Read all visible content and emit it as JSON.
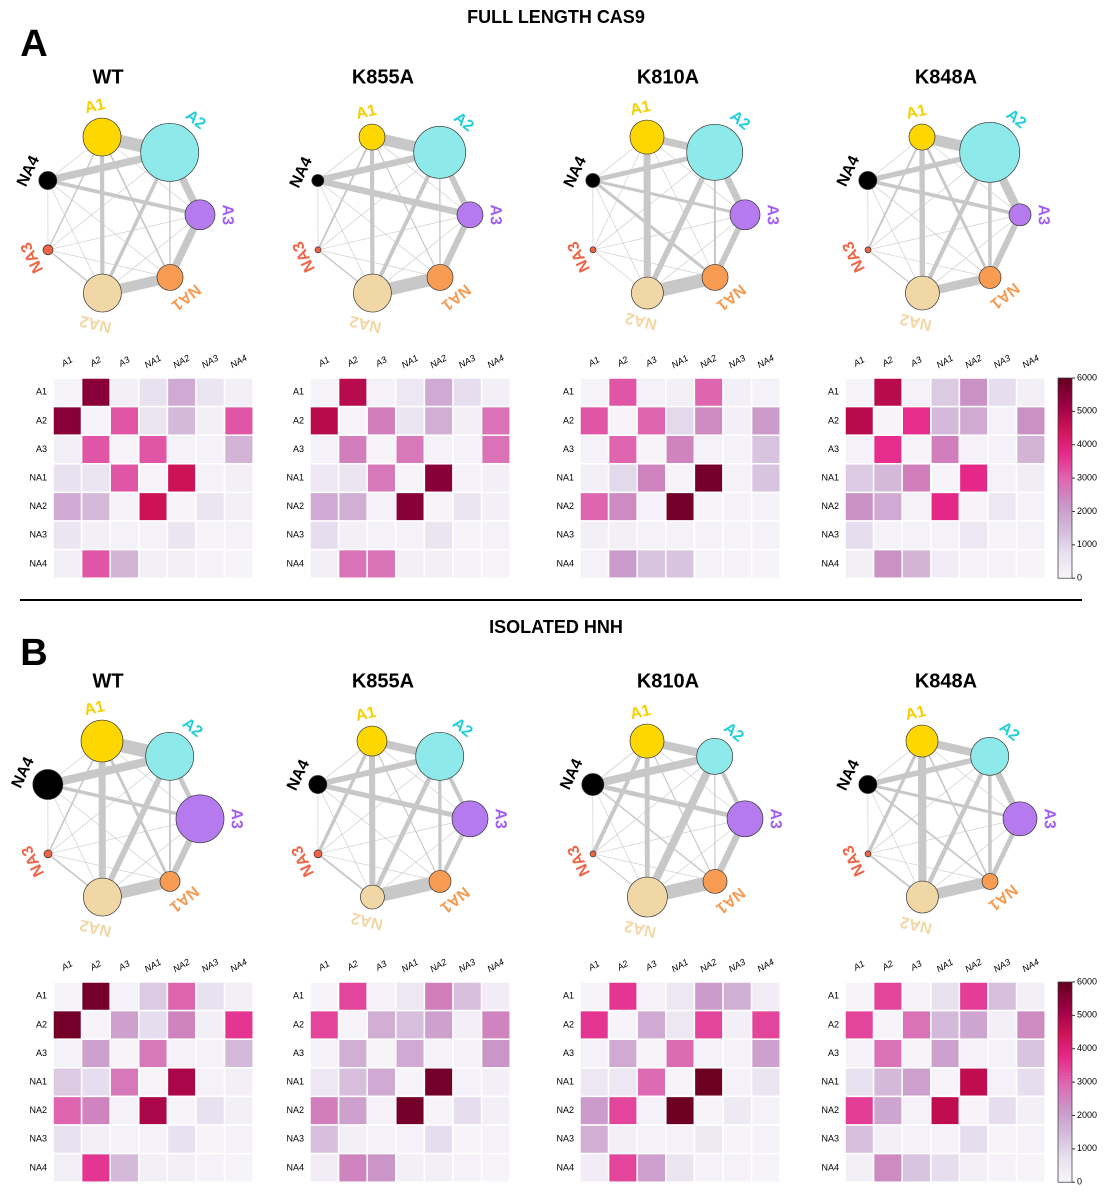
{
  "sections": [
    {
      "label": "A",
      "title": "FULL LENGTH CAS9"
    },
    {
      "label": "B",
      "title": "ISOLATED HNH"
    }
  ],
  "node_colors": [
    "#ffd700",
    "#8eeaea",
    "#b57bee",
    "#f89c54",
    "#f2d7a6",
    "#ee6446",
    "#000000"
  ],
  "label_colors": [
    "#f5cf00",
    "#22cfd6",
    "#a25ef0",
    "#f59a52",
    "#f2d7a6",
    "#ee6446",
    "#000000"
  ],
  "colorbar": {
    "zlim": [
      0,
      6000
    ],
    "zticks": [
      0,
      1000,
      2000,
      3000,
      4000,
      5000,
      6000
    ]
  },
  "chart_data": [
    {
      "type": "heatmap",
      "title": "WT",
      "categories": [
        "A1",
        "A2",
        "A3",
        "NA1",
        "NA2",
        "NA3",
        "NA4"
      ],
      "node_sizes": [
        19,
        29,
        15,
        13,
        19,
        5,
        9
      ],
      "values": [
        [
          0,
          5500,
          200,
          700,
          1800,
          600,
          200
        ],
        [
          5500,
          0,
          3200,
          600,
          1500,
          200,
          3200
        ],
        [
          200,
          3200,
          0,
          3200,
          100,
          100,
          1600
        ],
        [
          700,
          600,
          3200,
          0,
          4500,
          100,
          200
        ],
        [
          1800,
          1500,
          100,
          4500,
          0,
          600,
          200
        ],
        [
          600,
          200,
          100,
          100,
          600,
          0,
          100
        ],
        [
          200,
          3200,
          1600,
          200,
          200,
          100,
          0
        ]
      ]
    },
    {
      "type": "heatmap",
      "title": "K855A",
      "categories": [
        "A1",
        "A2",
        "A3",
        "NA1",
        "NA2",
        "NA3",
        "NA4"
      ],
      "node_sizes": [
        13,
        26,
        13,
        13,
        19,
        3,
        6
      ],
      "values": [
        [
          0,
          4800,
          100,
          500,
          1800,
          800,
          200
        ],
        [
          4800,
          0,
          2600,
          600,
          1700,
          200,
          2800
        ],
        [
          100,
          2600,
          0,
          2700,
          100,
          100,
          2800
        ],
        [
          500,
          600,
          2700,
          0,
          5500,
          100,
          200
        ],
        [
          1800,
          1700,
          100,
          5500,
          0,
          600,
          200
        ],
        [
          800,
          200,
          100,
          100,
          600,
          0,
          100
        ],
        [
          200,
          2800,
          2800,
          200,
          200,
          100,
          0
        ]
      ]
    },
    {
      "type": "heatmap",
      "title": "K810A",
      "categories": [
        "A1",
        "A2",
        "A3",
        "NA1",
        "NA2",
        "NA3",
        "NA4"
      ],
      "node_sizes": [
        17,
        28,
        15,
        13,
        16,
        3,
        7
      ],
      "values": [
        [
          0,
          3200,
          100,
          200,
          3000,
          200,
          100
        ],
        [
          3200,
          0,
          3000,
          900,
          2400,
          200,
          2100
        ],
        [
          100,
          3000,
          0,
          2500,
          100,
          100,
          1300
        ],
        [
          200,
          900,
          2500,
          0,
          5800,
          100,
          1300
        ],
        [
          3000,
          2400,
          100,
          5800,
          0,
          100,
          100
        ],
        [
          200,
          200,
          100,
          100,
          100,
          0,
          100
        ],
        [
          100,
          2100,
          1300,
          1300,
          100,
          100,
          0
        ]
      ]
    },
    {
      "type": "heatmap",
      "title": "K848A",
      "categories": [
        "A1",
        "A2",
        "A3",
        "NA1",
        "NA2",
        "NA3",
        "NA4"
      ],
      "node_sizes": [
        13,
        30,
        11,
        11,
        17,
        3,
        9
      ],
      "values": [
        [
          0,
          4800,
          100,
          1200,
          2300,
          800,
          200
        ],
        [
          4800,
          0,
          3700,
          1500,
          1800,
          100,
          2300
        ],
        [
          100,
          3700,
          0,
          2600,
          100,
          100,
          1600
        ],
        [
          1200,
          1500,
          2600,
          0,
          3800,
          100,
          300
        ],
        [
          2300,
          1800,
          100,
          3800,
          0,
          500,
          100
        ],
        [
          800,
          100,
          100,
          100,
          500,
          0,
          100
        ],
        [
          200,
          2300,
          1600,
          300,
          100,
          100,
          0
        ]
      ]
    },
    {
      "type": "heatmap",
      "title": "WT",
      "categories": [
        "A1",
        "A2",
        "A3",
        "NA1",
        "NA2",
        "NA3",
        "NA4"
      ],
      "node_sizes": [
        21,
        24,
        24,
        10,
        19,
        4,
        15
      ],
      "values": [
        [
          0,
          5800,
          100,
          1200,
          3000,
          700,
          200
        ],
        [
          5800,
          0,
          2000,
          800,
          2500,
          200,
          3600
        ],
        [
          100,
          2000,
          0,
          2700,
          100,
          100,
          1500
        ],
        [
          1200,
          800,
          2700,
          0,
          5000,
          100,
          200
        ],
        [
          3000,
          2500,
          100,
          5000,
          0,
          700,
          200
        ],
        [
          700,
          200,
          100,
          100,
          700,
          0,
          100
        ],
        [
          200,
          3600,
          1500,
          200,
          200,
          100,
          0
        ]
      ]
    },
    {
      "type": "heatmap",
      "title": "K855A",
      "categories": [
        "A1",
        "A2",
        "A3",
        "NA1",
        "NA2",
        "NA3",
        "NA4"
      ],
      "node_sizes": [
        15,
        24,
        18,
        11,
        12,
        4,
        9
      ],
      "values": [
        [
          0,
          3400,
          100,
          500,
          2600,
          1400,
          300
        ],
        [
          3400,
          0,
          1700,
          1400,
          2000,
          200,
          2500
        ],
        [
          100,
          1700,
          0,
          1800,
          100,
          100,
          2200
        ],
        [
          500,
          1400,
          1800,
          0,
          5800,
          100,
          200
        ],
        [
          2600,
          2000,
          100,
          5800,
          0,
          800,
          200
        ],
        [
          1400,
          200,
          100,
          100,
          800,
          0,
          100
        ],
        [
          300,
          2500,
          2200,
          200,
          200,
          100,
          0
        ]
      ]
    },
    {
      "type": "heatmap",
      "title": "K810A",
      "categories": [
        "A1",
        "A2",
        "A3",
        "NA1",
        "NA2",
        "NA3",
        "NA4"
      ],
      "node_sizes": [
        17,
        18,
        18,
        12,
        20,
        3,
        11
      ],
      "values": [
        [
          0,
          3600,
          100,
          500,
          2100,
          1700,
          300
        ],
        [
          3600,
          0,
          1800,
          500,
          3400,
          200,
          3400
        ],
        [
          100,
          1800,
          0,
          2900,
          100,
          100,
          2000
        ],
        [
          500,
          500,
          2900,
          0,
          5900,
          100,
          600
        ],
        [
          2100,
          3400,
          100,
          5900,
          0,
          400,
          100
        ],
        [
          1700,
          200,
          100,
          100,
          400,
          0,
          100
        ],
        [
          300,
          3400,
          2000,
          600,
          100,
          100,
          0
        ]
      ]
    },
    {
      "type": "heatmap",
      "title": "K848A",
      "categories": [
        "A1",
        "A2",
        "A3",
        "NA1",
        "NA2",
        "NA3",
        "NA4"
      ],
      "node_sizes": [
        16,
        19,
        17,
        8,
        16,
        3,
        9
      ],
      "values": [
        [
          0,
          3400,
          100,
          700,
          3500,
          1400,
          200
        ],
        [
          3400,
          0,
          2800,
          1500,
          1900,
          200,
          2400
        ],
        [
          100,
          2800,
          0,
          2000,
          100,
          100,
          1300
        ],
        [
          700,
          1500,
          2000,
          0,
          4700,
          100,
          800
        ],
        [
          3500,
          1900,
          100,
          4700,
          0,
          800,
          200
        ],
        [
          1400,
          200,
          100,
          100,
          800,
          0,
          100
        ],
        [
          200,
          2400,
          1300,
          800,
          200,
          100,
          0
        ]
      ]
    }
  ]
}
